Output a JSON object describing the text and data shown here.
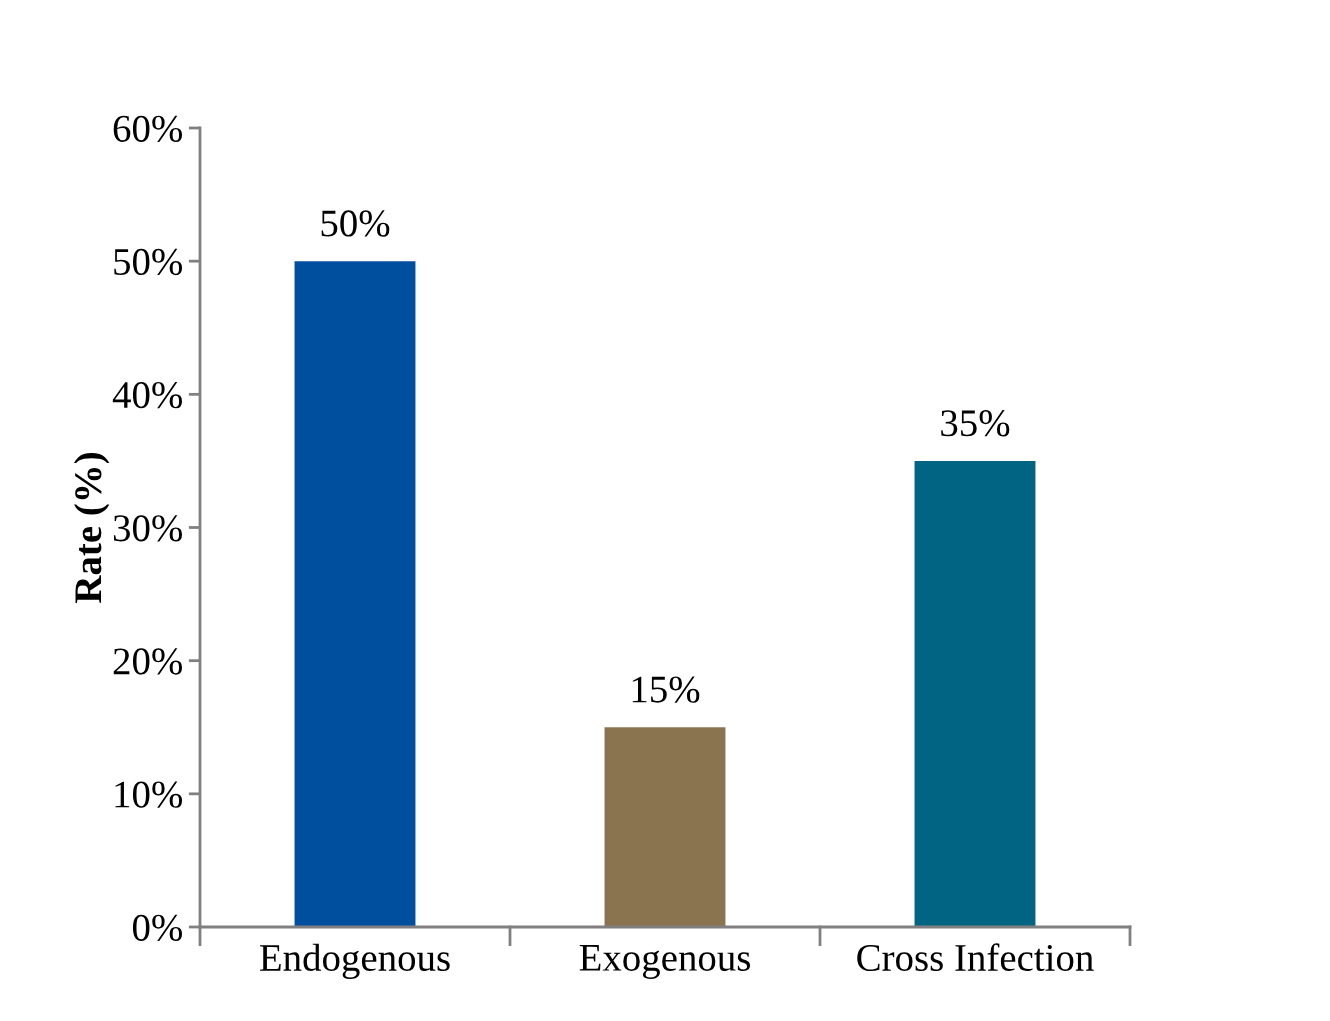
{
  "chart_data": {
    "type": "bar",
    "ylabel": "Rate (%)",
    "categories": [
      "Endogenous",
      "Exogenous",
      "Cross Infection"
    ],
    "values": [
      50,
      15,
      35
    ],
    "colors": [
      "#004f9f",
      "#8a7450",
      "#006482"
    ],
    "value_labels": [
      "50%",
      "15%",
      "35%"
    ],
    "ylim": [
      0,
      60
    ],
    "yticks": [
      {
        "value": 0,
        "label": "0%"
      },
      {
        "value": 10,
        "label": "10%"
      },
      {
        "value": 20,
        "label": "20%"
      },
      {
        "value": 30,
        "label": "30%"
      },
      {
        "value": 40,
        "label": "40%"
      },
      {
        "value": 50,
        "label": "50%"
      },
      {
        "value": 60,
        "label": "60%"
      }
    ],
    "grid": false
  }
}
